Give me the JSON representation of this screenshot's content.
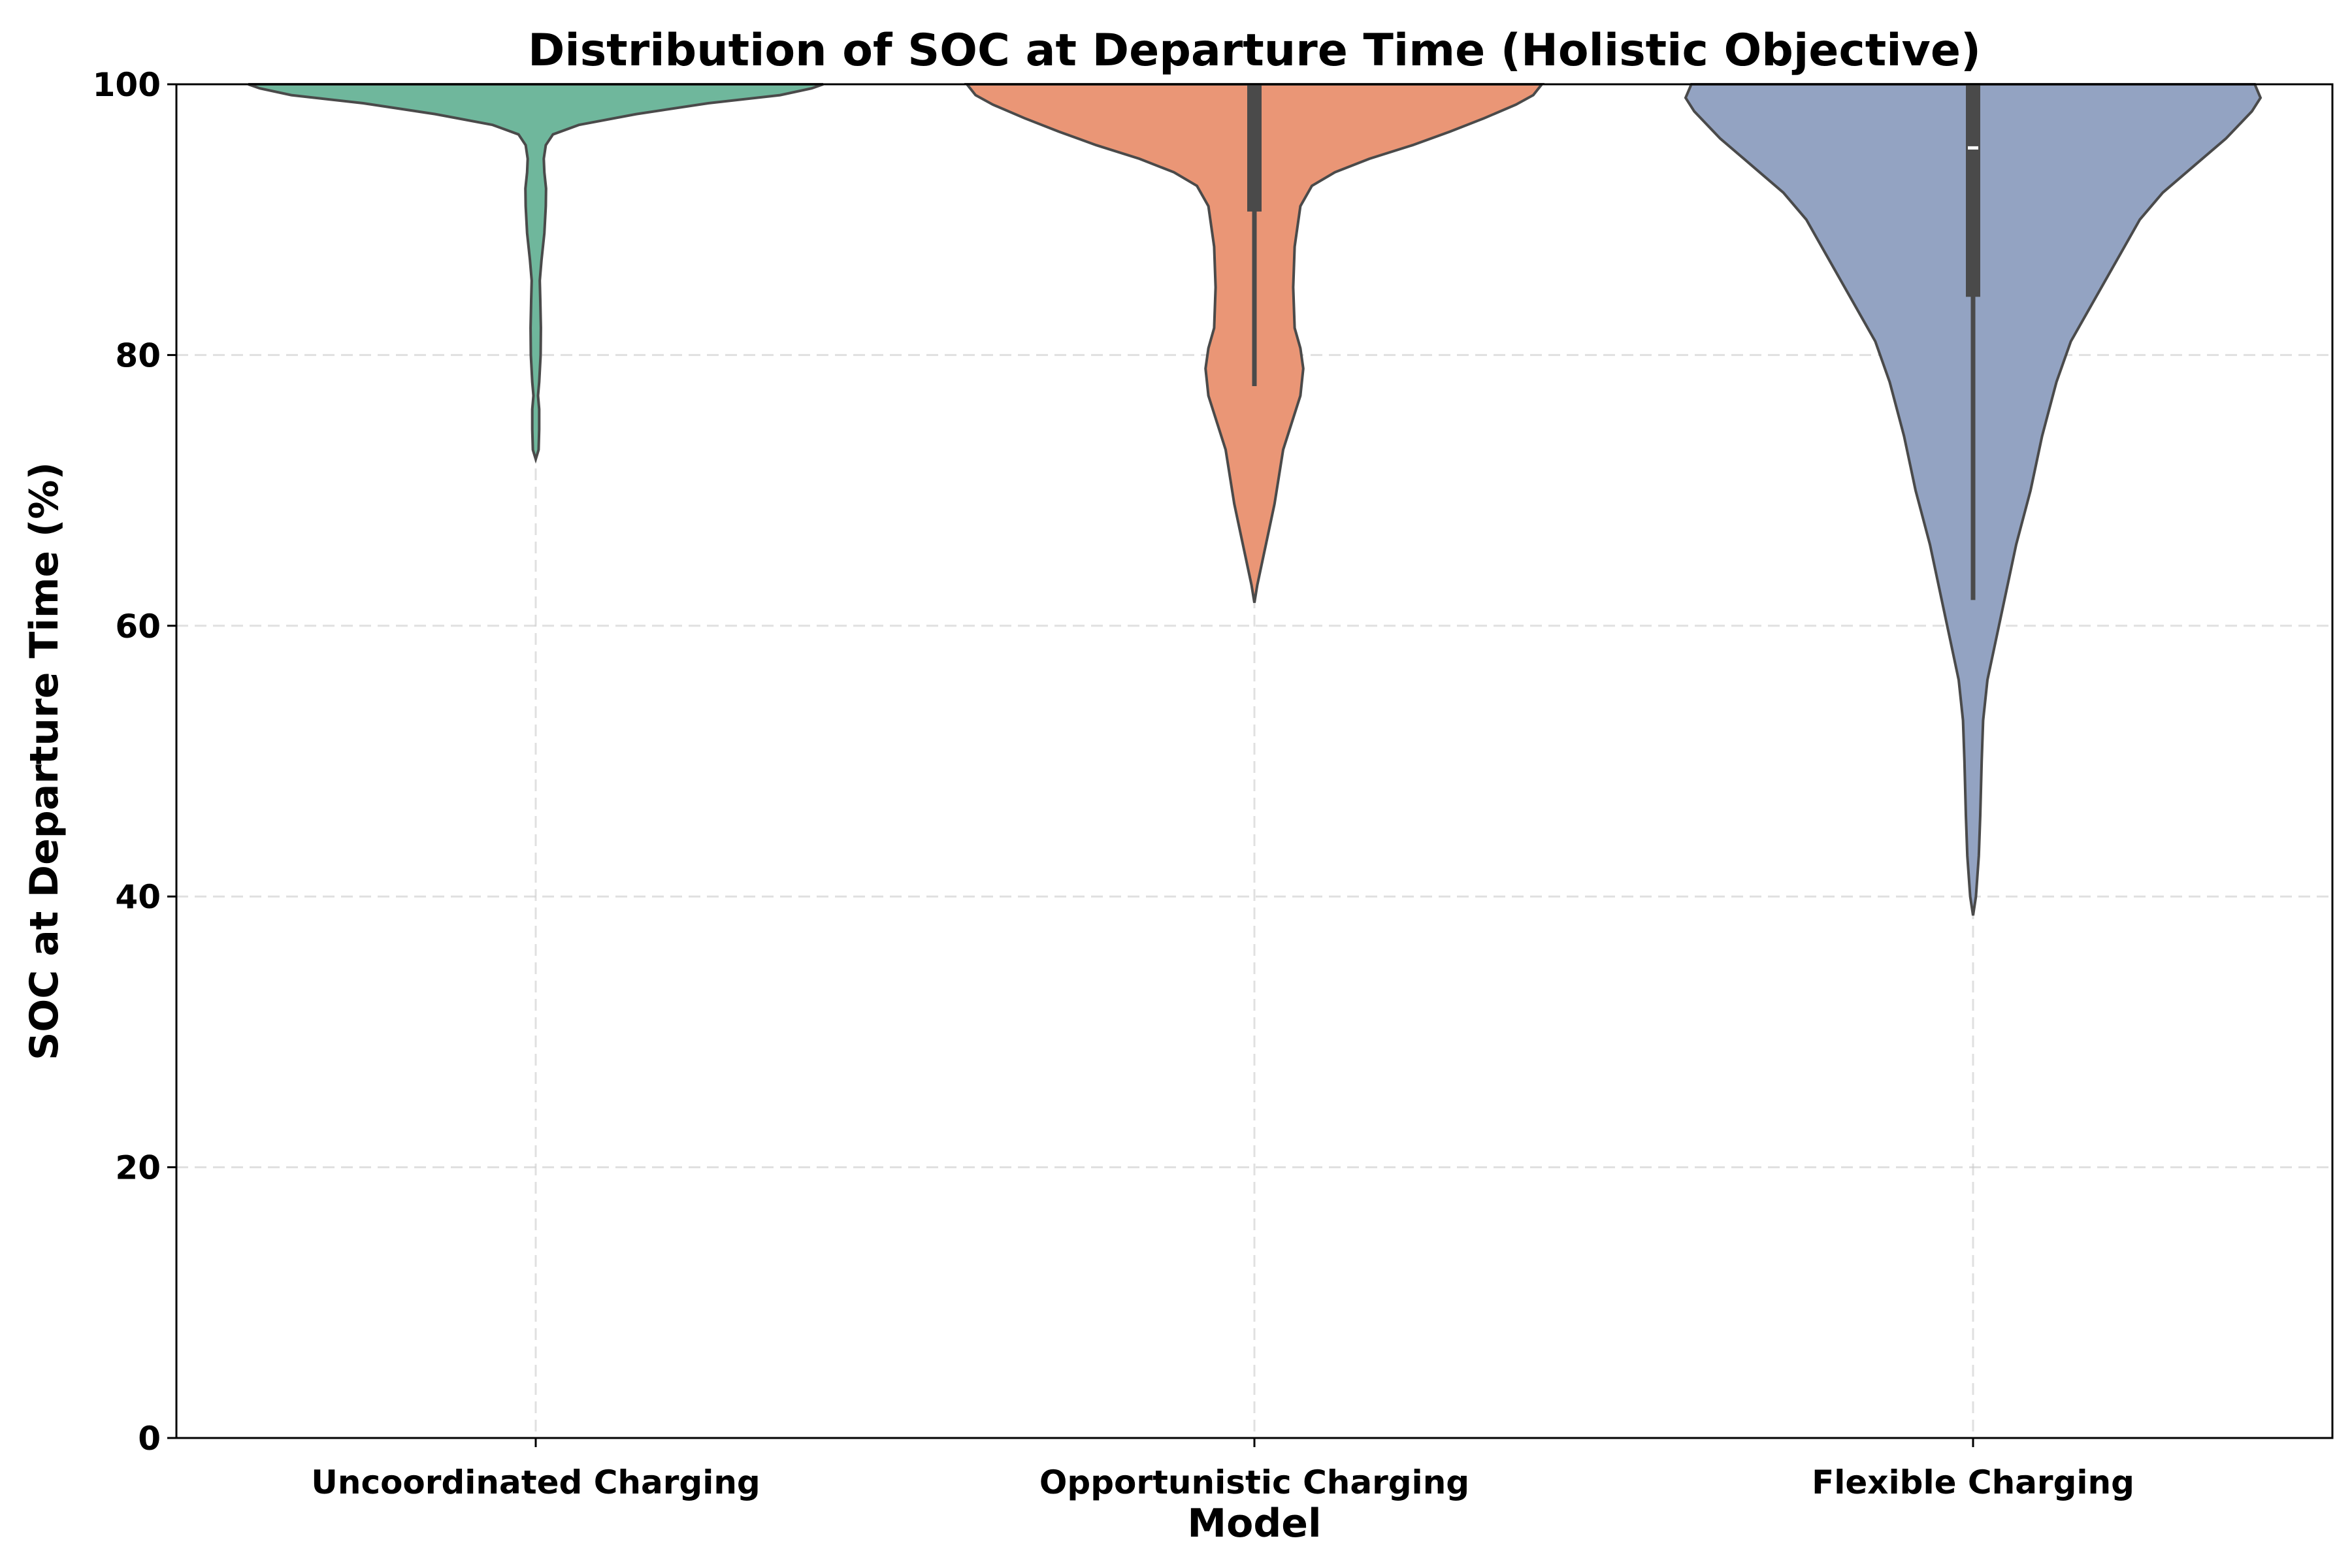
{
  "chart_data": {
    "type": "violin",
    "title": "Distribution of SOC at Departure Time (Holistic Objective)",
    "xlabel": "Model",
    "ylabel": "SOC at Departure Time (%)",
    "ylim": [
      0,
      100
    ],
    "yticks": [
      0,
      20,
      40,
      60,
      80,
      100
    ],
    "grid": true,
    "categories": [
      "Uncoordinated Charging",
      "Opportunistic Charging",
      "Flexible Charging"
    ],
    "colors": [
      "#6fb79c",
      "#ea9676",
      "#93a3c2"
    ],
    "series": [
      {
        "min": 72.3,
        "q1": 100,
        "median": 100,
        "q3": 100,
        "max": 100,
        "whisker_low": 100,
        "profile": [
          [
            72.3,
            0
          ],
          [
            73,
            0.01
          ],
          [
            74.5,
            0.012
          ],
          [
            76,
            0.012
          ],
          [
            77,
            0.008
          ],
          [
            78,
            0.012
          ],
          [
            80,
            0.017
          ],
          [
            82,
            0.018
          ],
          [
            84,
            0.016
          ],
          [
            85.5,
            0.014
          ],
          [
            87,
            0.02
          ],
          [
            89,
            0.03
          ],
          [
            91,
            0.035
          ],
          [
            92.3,
            0.036
          ],
          [
            93.5,
            0.03
          ],
          [
            94.5,
            0.028
          ],
          [
            95.5,
            0.035
          ],
          [
            96.3,
            0.06
          ],
          [
            97,
            0.15
          ],
          [
            97.8,
            0.35
          ],
          [
            98.6,
            0.6
          ],
          [
            99.2,
            0.85
          ],
          [
            99.7,
            0.96
          ],
          [
            100,
            1.0
          ]
        ]
      },
      {
        "min": 61.7,
        "q1": 90.6,
        "median": 100,
        "q3": 100,
        "max": 100,
        "whisker_low": 77.7,
        "profile": [
          [
            61.7,
            0
          ],
          [
            63,
            0.01
          ],
          [
            65,
            0.03
          ],
          [
            67,
            0.05
          ],
          [
            69,
            0.07
          ],
          [
            71,
            0.085
          ],
          [
            73,
            0.1
          ],
          [
            75,
            0.13
          ],
          [
            77,
            0.16
          ],
          [
            79,
            0.17
          ],
          [
            80.5,
            0.16
          ],
          [
            82,
            0.14
          ],
          [
            85,
            0.135
          ],
          [
            88,
            0.14
          ],
          [
            91,
            0.16
          ],
          [
            92.5,
            0.2
          ],
          [
            93.5,
            0.28
          ],
          [
            94.5,
            0.4
          ],
          [
            95.5,
            0.55
          ],
          [
            96.5,
            0.68
          ],
          [
            97.5,
            0.8
          ],
          [
            98.5,
            0.91
          ],
          [
            99.2,
            0.97
          ],
          [
            100,
            1.0
          ]
        ]
      },
      {
        "min": 38.6,
        "q1": 84.3,
        "median": 95.3,
        "q3": 100,
        "max": 100,
        "whisker_low": 61.9,
        "profile": [
          [
            38.6,
            0
          ],
          [
            40,
            0.01
          ],
          [
            43,
            0.02
          ],
          [
            46,
            0.025
          ],
          [
            50,
            0.03
          ],
          [
            53,
            0.035
          ],
          [
            56,
            0.05
          ],
          [
            59,
            0.08
          ],
          [
            62,
            0.11
          ],
          [
            66,
            0.15
          ],
          [
            70,
            0.2
          ],
          [
            74,
            0.24
          ],
          [
            78,
            0.29
          ],
          [
            81,
            0.34
          ],
          [
            84,
            0.42
          ],
          [
            87,
            0.5
          ],
          [
            90,
            0.58
          ],
          [
            92,
            0.66
          ],
          [
            94,
            0.77
          ],
          [
            96,
            0.88
          ],
          [
            98,
            0.97
          ],
          [
            99,
            1.0
          ],
          [
            100,
            0.98
          ]
        ]
      }
    ]
  }
}
